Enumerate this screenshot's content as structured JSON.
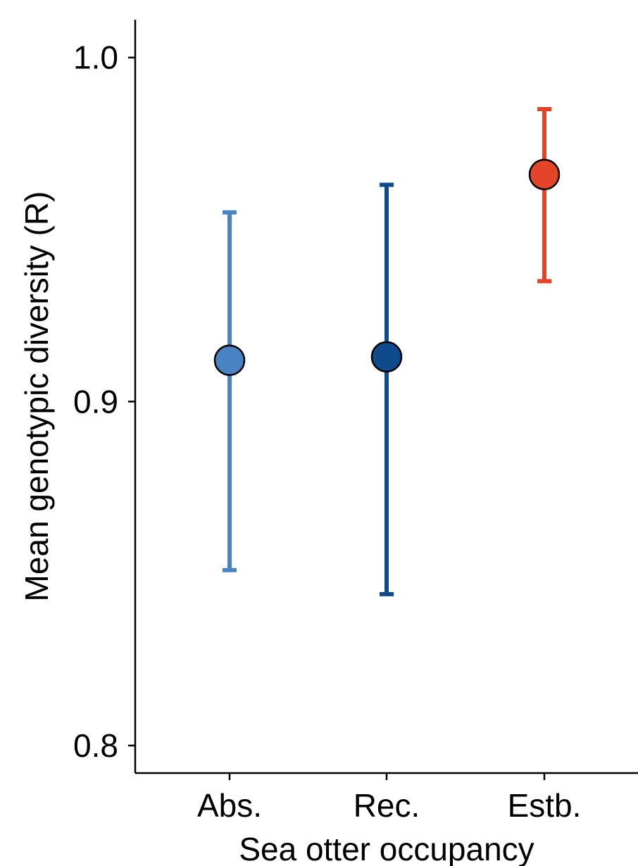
{
  "chart_data": {
    "type": "scatter",
    "title": "",
    "xlabel": "Sea otter occupancy",
    "ylabel": "Mean genotypic diversity (R)",
    "ylim": [
      0.792,
      1.011
    ],
    "yticks": [
      0.8,
      0.9,
      1.0
    ],
    "ytick_labels": [
      "0.8",
      "0.9",
      "1.0"
    ],
    "categories": [
      "Abs.",
      "Rec.",
      "Estb."
    ],
    "values": [
      0.912,
      0.913,
      0.966
    ],
    "error_low": [
      0.851,
      0.844,
      0.935
    ],
    "error_high": [
      0.955,
      0.963,
      0.985
    ],
    "colors": [
      "#4A83C4",
      "#0E4A8C",
      "#E3442A"
    ],
    "grid": false,
    "legend": "none"
  }
}
